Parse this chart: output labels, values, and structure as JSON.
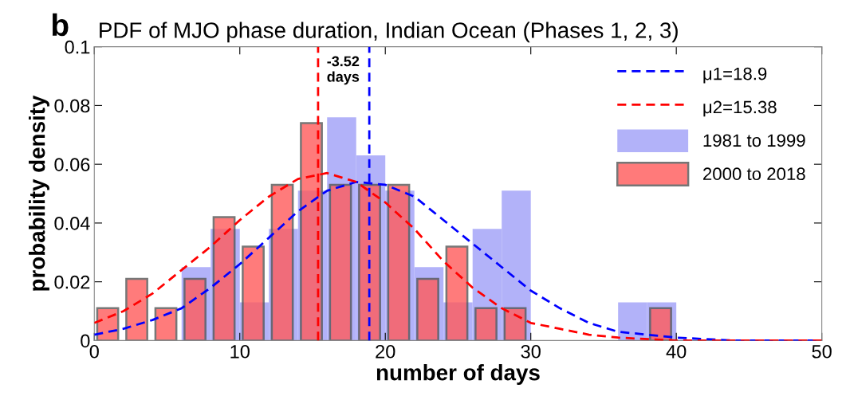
{
  "chart_data": {
    "type": "histogram",
    "title": "PDF of MJO phase duration, Indian Ocean (Phases 1, 2, 3)",
    "xlabel": "number of days",
    "ylabel": "probability density",
    "annotations": [
      "b",
      "-3.52\ndays"
    ],
    "bins": [
      0,
      2,
      4,
      6,
      8,
      10,
      12,
      14,
      16,
      18,
      20,
      22,
      24,
      26,
      28,
      30,
      32,
      34,
      36,
      38,
      40
    ],
    "series": [
      {
        "name": "μ1=18.9",
        "type": "line",
        "color": "#0000ff",
        "line_style": "dashed",
        "x": [
          0,
          2,
          4,
          6,
          8,
          10,
          12,
          14,
          16,
          18,
          20,
          22,
          24,
          26,
          28,
          30,
          32,
          34,
          36,
          38,
          40,
          44,
          50
        ],
        "values": [
          0.002,
          0.004,
          0.007,
          0.011,
          0.018,
          0.026,
          0.035,
          0.044,
          0.051,
          0.054,
          0.053,
          0.049,
          0.041,
          0.033,
          0.025,
          0.017,
          0.011,
          0.006,
          0.003,
          0.002,
          0.001,
          0,
          0
        ]
      },
      {
        "name": "μ2=15.38",
        "type": "line",
        "color": "#ff0000",
        "line_style": "dashed",
        "x": [
          0,
          2,
          4,
          6,
          8,
          10,
          12,
          14,
          16,
          18,
          20,
          22,
          24,
          26,
          28,
          30,
          32,
          34,
          36,
          40,
          50
        ],
        "values": [
          0.006,
          0.01,
          0.016,
          0.024,
          0.032,
          0.041,
          0.049,
          0.055,
          0.057,
          0.054,
          0.047,
          0.038,
          0.027,
          0.018,
          0.011,
          0.006,
          0.004,
          0.002,
          0.001,
          0,
          0
        ]
      },
      {
        "name": "1981 to 1999",
        "color": "#b2b2f9",
        "values": [
          0,
          0,
          0,
          0.025,
          0.038,
          0.013,
          0.038,
          0.051,
          0.076,
          0.063,
          0.051,
          0.025,
          0.013,
          0.038,
          0.051,
          0,
          0,
          0,
          0.013,
          0.013
        ]
      },
      {
        "name": "2000 to 2018",
        "color": "#ff5a5a",
        "values": [
          0.011,
          0.021,
          0.011,
          0.021,
          0.042,
          0.032,
          0.053,
          0.074,
          0.053,
          0.053,
          0.053,
          0.021,
          0.032,
          0.011,
          0.011,
          0,
          0,
          0,
          0,
          0.011
        ]
      }
    ],
    "ref_lines": [
      {
        "axis": "x",
        "value": 15.38,
        "color": "#ff0000",
        "line_style": "dashed"
      },
      {
        "axis": "x",
        "value": 18.9,
        "color": "#0000ff",
        "line_style": "dashed"
      }
    ],
    "xlim": [
      0,
      50
    ],
    "xticks": [
      0,
      10,
      20,
      30,
      40,
      50
    ],
    "ylim": [
      0,
      0.1
    ],
    "yticks": [
      0,
      0.02,
      0.04,
      0.06,
      0.08,
      0.1
    ],
    "legend": "top right",
    "grid": false
  }
}
